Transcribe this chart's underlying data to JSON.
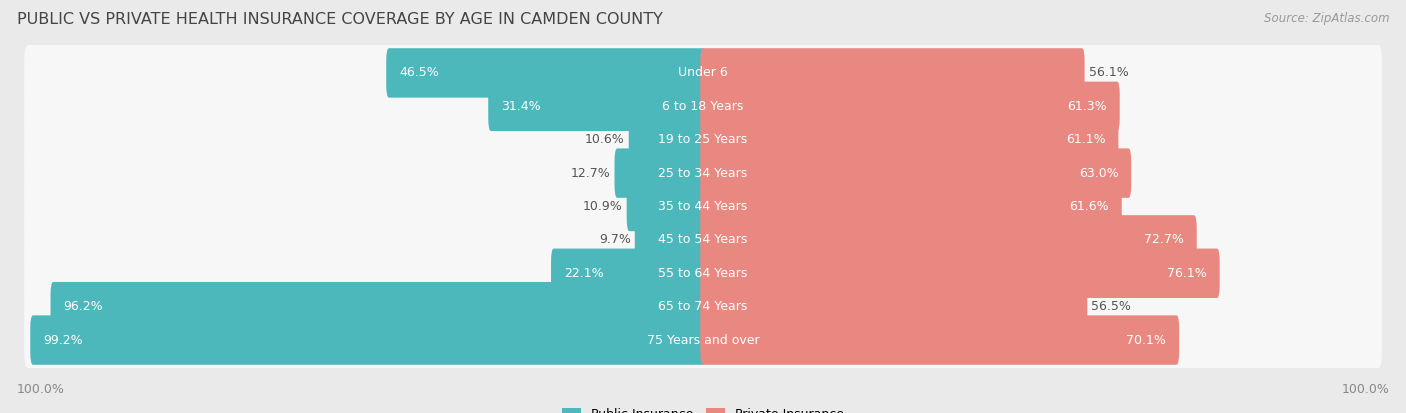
{
  "title": "Public vs Private Health Insurance Coverage by Age in Camden County",
  "source": "Source: ZipAtlas.com",
  "categories": [
    "Under 6",
    "6 to 18 Years",
    "19 to 25 Years",
    "25 to 34 Years",
    "35 to 44 Years",
    "45 to 54 Years",
    "55 to 64 Years",
    "65 to 74 Years",
    "75 Years and over"
  ],
  "public_values": [
    46.5,
    31.4,
    10.6,
    12.7,
    10.9,
    9.7,
    22.1,
    96.2,
    99.2
  ],
  "private_values": [
    56.1,
    61.3,
    61.1,
    63.0,
    61.6,
    72.7,
    76.1,
    56.5,
    70.1
  ],
  "public_color": "#4db8bc",
  "private_color": "#e88880",
  "background_color": "#eaeaea",
  "bar_bg_color": "#f7f7f7",
  "bar_height": 0.68,
  "max_value": 100.0,
  "title_fontsize": 11.5,
  "label_fontsize": 9.0,
  "source_fontsize": 8.5,
  "legend_fontsize": 9.0,
  "pub_label_inside_threshold": 20,
  "priv_label_inside_threshold": 60
}
